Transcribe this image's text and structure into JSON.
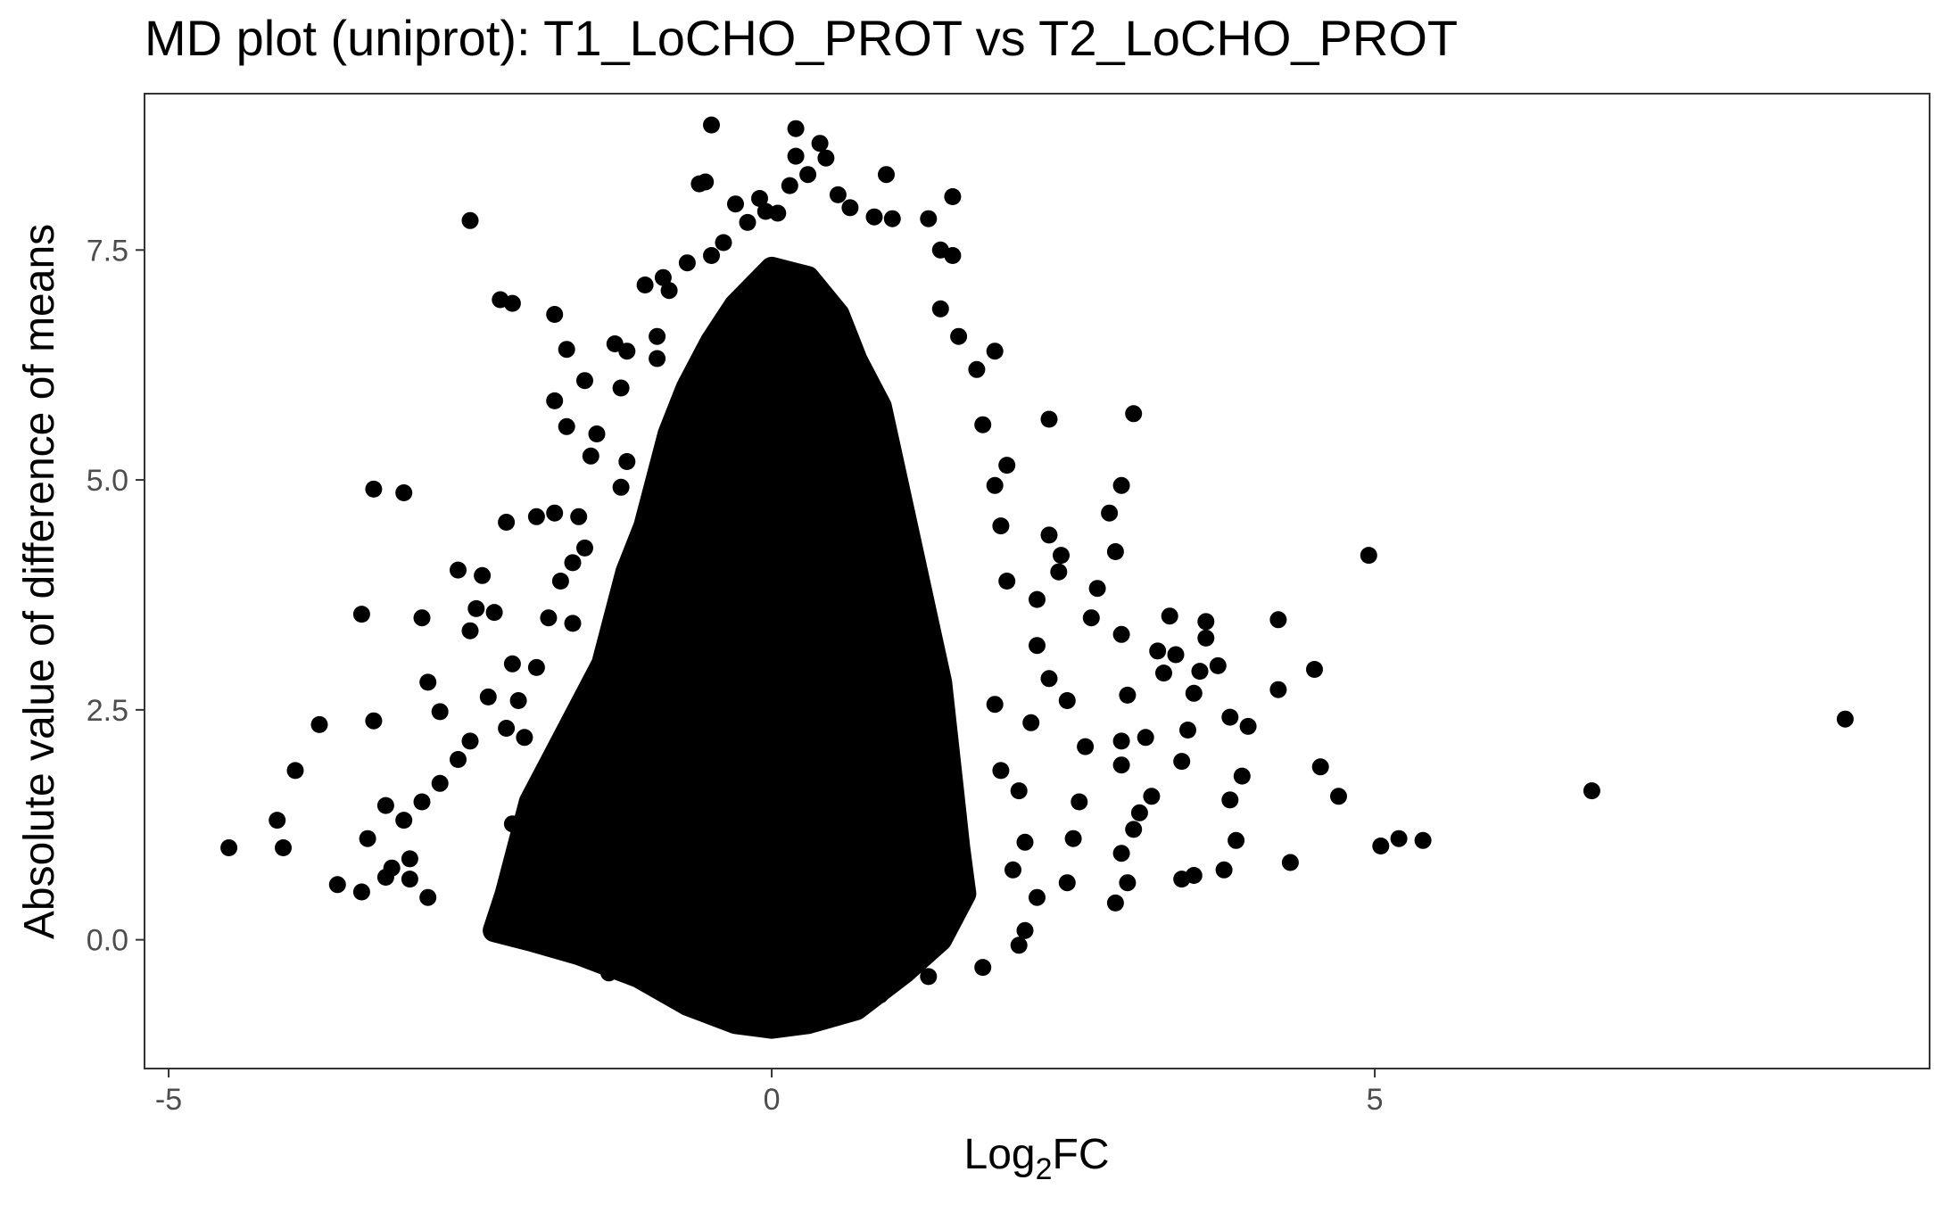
{
  "chart_data": {
    "type": "scatter",
    "title": "MD plot (uniprot): T1_LoCHO_PROT vs T2_LoCHO_PROT",
    "xlabel": {
      "base": "Log",
      "sub": "2",
      "suffix": "FC"
    },
    "ylabel": "Absolute value of difference of means",
    "xlim": [
      -5.2,
      9.6
    ],
    "ylim": [
      -1.4,
      9.2
    ],
    "x_ticks": [
      {
        "value": -5,
        "label": "-5"
      },
      {
        "value": 0,
        "label": "0"
      },
      {
        "value": 5,
        "label": "5"
      }
    ],
    "y_ticks": [
      {
        "value": 0,
        "label": "0.0"
      },
      {
        "value": 2.5,
        "label": "2.5"
      },
      {
        "value": 5,
        "label": "5.0"
      },
      {
        "value": 7.5,
        "label": "7.5"
      }
    ],
    "grid": false,
    "legend": "none",
    "point_color": "#000000",
    "dense_core": {
      "description_note": "",
      "outline": [
        [
          -2.3,
          0.1
        ],
        [
          -2.2,
          0.5
        ],
        [
          -2.1,
          1.0
        ],
        [
          -2.0,
          1.5
        ],
        [
          -1.8,
          2.0
        ],
        [
          -1.6,
          2.5
        ],
        [
          -1.4,
          3.0
        ],
        [
          -1.3,
          3.5
        ],
        [
          -1.2,
          4.0
        ],
        [
          -1.05,
          4.5
        ],
        [
          -0.95,
          5.0
        ],
        [
          -0.85,
          5.5
        ],
        [
          -0.7,
          6.0
        ],
        [
          -0.5,
          6.5
        ],
        [
          -0.3,
          6.9
        ],
        [
          0.0,
          7.3
        ],
        [
          0.3,
          7.2
        ],
        [
          0.55,
          6.8
        ],
        [
          0.7,
          6.3
        ],
        [
          0.9,
          5.8
        ],
        [
          1.0,
          5.2
        ],
        [
          1.1,
          4.6
        ],
        [
          1.2,
          4.0
        ],
        [
          1.3,
          3.4
        ],
        [
          1.4,
          2.8
        ],
        [
          1.45,
          2.2
        ],
        [
          1.5,
          1.6
        ],
        [
          1.55,
          1.0
        ],
        [
          1.6,
          0.5
        ],
        [
          1.4,
          0.0
        ],
        [
          1.1,
          -0.35
        ],
        [
          0.7,
          -0.75
        ],
        [
          0.3,
          -0.9
        ],
        [
          0.0,
          -0.95
        ],
        [
          -0.3,
          -0.9
        ],
        [
          -0.7,
          -0.7
        ],
        [
          -1.1,
          -0.4
        ],
        [
          -1.6,
          -0.15
        ],
        [
          -2.0,
          0.0
        ]
      ]
    },
    "points": [
      [
        8.9,
        2.4
      ],
      [
        6.8,
        1.62
      ],
      [
        5.4,
        1.08
      ],
      [
        5.2,
        1.1
      ],
      [
        5.05,
        1.02
      ],
      [
        4.7,
        1.56
      ],
      [
        4.55,
        1.88
      ],
      [
        4.95,
        4.18
      ],
      [
        4.5,
        2.94
      ],
      [
        4.3,
        0.84
      ],
      [
        4.2,
        3.48
      ],
      [
        4.2,
        2.72
      ],
      [
        3.95,
        2.32
      ],
      [
        3.8,
        2.42
      ],
      [
        3.85,
        1.08
      ],
      [
        3.9,
        1.78
      ],
      [
        3.8,
        1.52
      ],
      [
        3.75,
        0.76
      ],
      [
        3.7,
        2.98
      ],
      [
        3.6,
        3.46
      ],
      [
        3.6,
        3.28
      ],
      [
        3.55,
        2.92
      ],
      [
        3.5,
        2.68
      ],
      [
        3.45,
        2.28
      ],
      [
        3.4,
        1.94
      ],
      [
        3.5,
        0.7
      ],
      [
        3.4,
        0.66
      ],
      [
        3.35,
        3.1
      ],
      [
        3.3,
        3.52
      ],
      [
        3.2,
        3.14
      ],
      [
        3.25,
        2.9
      ],
      [
        3.1,
        2.2
      ],
      [
        3.15,
        1.56
      ],
      [
        3.05,
        1.38
      ],
      [
        3.0,
        1.2
      ],
      [
        2.9,
        0.94
      ],
      [
        2.95,
        0.62
      ],
      [
        2.85,
        0.4
      ],
      [
        2.9,
        1.9
      ],
      [
        2.9,
        2.16
      ],
      [
        2.95,
        2.66
      ],
      [
        2.9,
        3.32
      ],
      [
        3.0,
        5.72
      ],
      [
        2.9,
        4.94
      ],
      [
        2.8,
        4.64
      ],
      [
        2.85,
        4.22
      ],
      [
        2.7,
        3.82
      ],
      [
        2.65,
        3.5
      ],
      [
        2.6,
        2.1
      ],
      [
        2.55,
        1.5
      ],
      [
        2.45,
        0.62
      ],
      [
        2.5,
        1.1
      ],
      [
        2.45,
        2.6
      ],
      [
        2.3,
        2.84
      ],
      [
        2.4,
        4.18
      ],
      [
        2.38,
        4.0
      ],
      [
        2.3,
        4.4
      ],
      [
        2.3,
        5.66
      ],
      [
        2.2,
        3.7
      ],
      [
        2.2,
        3.2
      ],
      [
        2.15,
        2.36
      ],
      [
        2.05,
        1.62
      ],
      [
        2.1,
        1.06
      ],
      [
        2.2,
        0.46
      ],
      [
        2.0,
        0.76
      ],
      [
        1.9,
        1.84
      ],
      [
        1.85,
        2.56
      ],
      [
        1.95,
        3.9
      ],
      [
        1.9,
        4.5
      ],
      [
        1.85,
        4.94
      ],
      [
        1.95,
        5.16
      ],
      [
        1.75,
        5.6
      ],
      [
        1.85,
        6.4
      ],
      [
        1.55,
        6.56
      ],
      [
        1.4,
        6.86
      ],
      [
        1.7,
        6.2
      ],
      [
        1.5,
        7.44
      ],
      [
        1.4,
        7.5
      ],
      [
        1.0,
        7.84
      ],
      [
        1.3,
        7.84
      ],
      [
        1.5,
        8.08
      ],
      [
        0.95,
        8.32
      ],
      [
        0.55,
        8.1
      ],
      [
        0.65,
        7.96
      ],
      [
        0.85,
        7.86
      ],
      [
        0.4,
        8.66
      ],
      [
        0.45,
        8.5
      ],
      [
        0.3,
        8.32
      ],
      [
        0.2,
        8.82
      ],
      [
        0.2,
        8.52
      ],
      [
        0.15,
        8.2
      ],
      [
        0.05,
        7.9
      ],
      [
        -0.05,
        7.92
      ],
      [
        -0.1,
        8.06
      ],
      [
        -0.3,
        8.0
      ],
      [
        -0.2,
        7.8
      ],
      [
        -0.5,
        7.44
      ],
      [
        -0.4,
        7.58
      ],
      [
        -0.55,
        8.24
      ],
      [
        -0.6,
        8.22
      ],
      [
        -0.5,
        8.86
      ],
      [
        -0.7,
        7.36
      ],
      [
        -0.85,
        7.06
      ],
      [
        -0.9,
        7.2
      ],
      [
        -1.05,
        7.12
      ],
      [
        -0.95,
        6.56
      ],
      [
        -0.95,
        6.32
      ],
      [
        -1.2,
        6.4
      ],
      [
        -1.3,
        6.48
      ],
      [
        -1.25,
        6.0
      ],
      [
        -1.45,
        5.5
      ],
      [
        -1.5,
        5.26
      ],
      [
        -1.6,
        4.6
      ],
      [
        -1.8,
        4.64
      ],
      [
        -1.75,
        3.9
      ],
      [
        -1.65,
        3.44
      ],
      [
        -1.55,
        4.26
      ],
      [
        -1.2,
        5.2
      ],
      [
        -1.25,
        4.92
      ],
      [
        -1.95,
        4.6
      ],
      [
        -2.2,
        4.54
      ],
      [
        -1.85,
        3.5
      ],
      [
        -1.95,
        2.96
      ],
      [
        -2.15,
        3.0
      ],
      [
        -2.1,
        2.6
      ],
      [
        -2.05,
        2.2
      ],
      [
        -2.2,
        2.3
      ],
      [
        -2.3,
        3.56
      ],
      [
        -2.45,
        3.6
      ],
      [
        -2.4,
        3.96
      ],
      [
        -2.5,
        3.36
      ],
      [
        -2.6,
        4.02
      ],
      [
        -2.35,
        2.64
      ],
      [
        -2.5,
        2.16
      ],
      [
        -2.6,
        1.96
      ],
      [
        -2.75,
        1.7
      ],
      [
        -2.9,
        1.5
      ],
      [
        -2.75,
        2.48
      ],
      [
        -2.85,
        2.8
      ],
      [
        -2.9,
        3.5
      ],
      [
        -3.05,
        1.3
      ],
      [
        -3.2,
        1.46
      ],
      [
        -3.0,
        0.88
      ],
      [
        -3.0,
        0.66
      ],
      [
        -2.85,
        0.46
      ],
      [
        -3.15,
        0.78
      ],
      [
        -3.2,
        0.68
      ],
      [
        -3.3,
        2.38
      ],
      [
        -3.3,
        4.9
      ],
      [
        -3.05,
        4.86
      ],
      [
        -3.4,
        3.54
      ],
      [
        -3.35,
        1.1
      ],
      [
        -3.4,
        0.52
      ],
      [
        -3.6,
        0.6
      ],
      [
        -3.75,
        2.34
      ],
      [
        -3.95,
        1.84
      ],
      [
        -4.05,
        1.0
      ],
      [
        -4.1,
        1.3
      ],
      [
        -4.5,
        1.0
      ],
      [
        -2.5,
        7.82
      ],
      [
        -2.25,
        6.96
      ],
      [
        -2.15,
        6.92
      ],
      [
        -1.8,
        6.8
      ],
      [
        -1.7,
        6.42
      ],
      [
        -1.55,
        6.08
      ],
      [
        -1.8,
        5.86
      ],
      [
        -1.7,
        5.58
      ],
      [
        -1.65,
        4.1
      ],
      [
        -0.4,
        -0.88
      ],
      [
        0.0,
        -0.9
      ],
      [
        0.4,
        -0.84
      ],
      [
        0.9,
        -0.6
      ],
      [
        1.3,
        -0.4
      ],
      [
        1.75,
        -0.3
      ],
      [
        2.05,
        -0.06
      ],
      [
        2.1,
        0.1
      ],
      [
        -1.35,
        -0.36
      ],
      [
        -1.0,
        -0.5
      ],
      [
        -2.1,
        0.14
      ],
      [
        -2.25,
        0.34
      ],
      [
        -2.05,
        0.8
      ],
      [
        -2.15,
        1.26
      ]
    ]
  }
}
